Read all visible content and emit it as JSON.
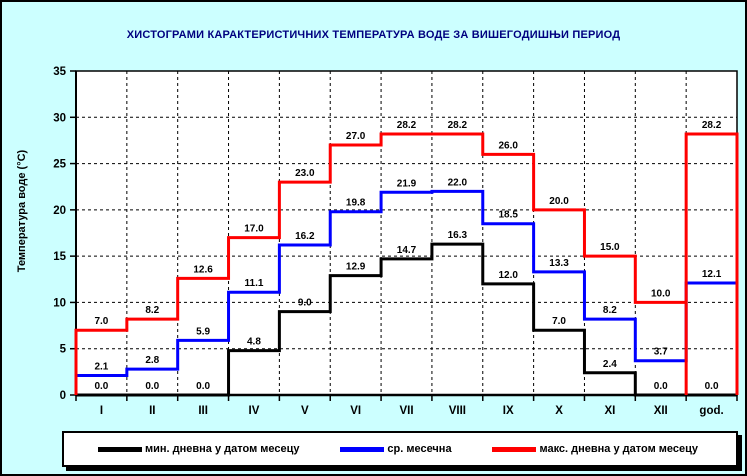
{
  "chart_data": {
    "type": "line",
    "subtype": "step-histogram",
    "title": "ХИСТОГРАМИ КАРАКТЕРИСТИЧНИХ ТЕМПЕРАТУРА ВОДЕ ЗА ВИШЕГОДИШЊИ ПЕРИОД",
    "xlabel": "",
    "ylabel": "Температура воде (°C)",
    "categories": [
      "I",
      "II",
      "III",
      "IV",
      "V",
      "VI",
      "VII",
      "VIII",
      "IX",
      "X",
      "XI",
      "XII",
      "god."
    ],
    "series": [
      {
        "name": "мин. дневна у датом месецу",
        "color": "#000000",
        "values": [
          0.0,
          0.0,
          0.0,
          4.8,
          9.0,
          12.9,
          14.7,
          16.3,
          12.0,
          7.0,
          2.4,
          0.0,
          0.0
        ],
        "year_box": false
      },
      {
        "name": "ср. месечна",
        "color": "#0000FF",
        "values": [
          2.1,
          2.8,
          5.9,
          11.1,
          16.2,
          19.8,
          21.9,
          22.0,
          18.5,
          13.3,
          8.2,
          3.7,
          12.1
        ],
        "year_box": false
      },
      {
        "name": "макс. дневна у датом месецу",
        "color": "#FF0000",
        "values": [
          7.0,
          8.2,
          12.6,
          17.0,
          23.0,
          27.0,
          28.2,
          28.2,
          26.0,
          20.0,
          15.0,
          10.0,
          28.2
        ],
        "year_box": true
      }
    ],
    "ylim": [
      0,
      35
    ],
    "yticks": [
      0,
      5,
      10,
      15,
      20,
      25,
      30,
      35
    ],
    "grid": "dashed",
    "legend_position": "bottom",
    "value_labels": "shown above each step, one decimal"
  },
  "colors": {
    "page_background": "#CCFFFF",
    "plot_background": "#FFFFFF",
    "title_text": "#000080",
    "axis_and_labels": "#000000"
  }
}
